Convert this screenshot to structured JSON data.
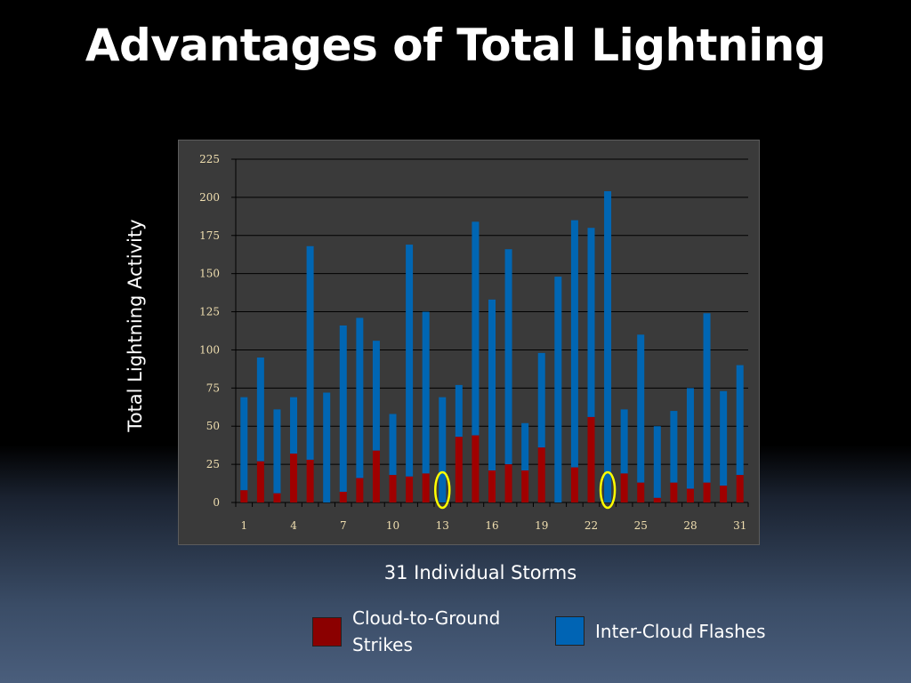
{
  "slide": {
    "title": "Advantages of Total Lightning"
  },
  "chart_data": {
    "type": "bar",
    "stacked": true,
    "categories": [
      1,
      2,
      3,
      4,
      5,
      6,
      7,
      8,
      9,
      10,
      11,
      12,
      13,
      14,
      15,
      16,
      17,
      18,
      19,
      20,
      21,
      22,
      23,
      24,
      25,
      26,
      27,
      28,
      29,
      30,
      31
    ],
    "x_tick_labels": [
      "1",
      "4",
      "7",
      "10",
      "13",
      "16",
      "19",
      "22",
      "25",
      "28",
      "31"
    ],
    "series": [
      {
        "name": "Cloud-to-Ground Strikes",
        "color": "#a00000",
        "values": [
          8,
          27,
          6,
          32,
          28,
          0,
          7,
          16,
          34,
          18,
          17,
          19,
          0,
          43,
          44,
          21,
          25,
          21,
          36,
          0,
          23,
          56,
          0,
          19,
          13,
          3,
          13,
          9,
          13,
          11,
          18
        ]
      },
      {
        "name": "Inter-Cloud Flashes",
        "color": "#0066b3",
        "values": [
          61,
          68,
          55,
          37,
          140,
          72,
          109,
          105,
          72,
          40,
          152,
          106,
          69,
          34,
          140,
          112,
          141,
          31,
          62,
          148,
          162,
          124,
          204,
          42,
          97,
          47,
          47,
          66,
          111,
          62,
          72
        ]
      }
    ],
    "xlabel": "31 Individual Storms",
    "ylabel": "Total Lightning Activity",
    "ylim": [
      0,
      225
    ],
    "yticks": [
      0,
      25,
      50,
      75,
      100,
      125,
      150,
      175,
      200,
      225
    ],
    "grid": true,
    "highlighted_storms": [
      13,
      23
    ],
    "highlight_color": "#ffff00",
    "legend_position": "bottom"
  },
  "legend": {
    "cg_label_line1": "Cloud-to-Ground",
    "cg_label_line2": "Strikes",
    "ic_label": "Inter-Cloud Flashes"
  }
}
